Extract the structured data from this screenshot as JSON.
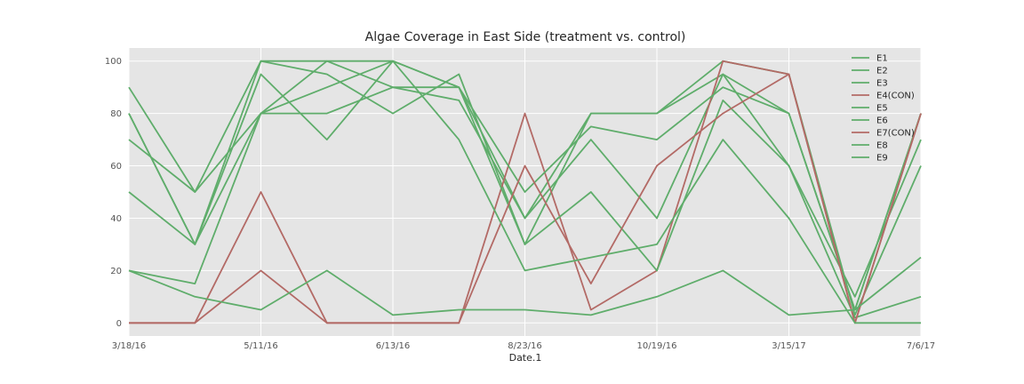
{
  "chart_data": {
    "type": "line",
    "title": "Algae Coverage in East Side (treatment vs. control)",
    "xlabel": "Date.1",
    "ylabel": "",
    "x": [
      "3/18/16",
      "",
      "5/11/16",
      "",
      "6/13/16",
      "",
      "8/23/16",
      "",
      "10/19/16",
      "",
      "3/15/17",
      "",
      "7/6/17"
    ],
    "x_tick_labels": [
      "3/18/16",
      "5/11/16",
      "6/13/16",
      "8/23/16",
      "10/19/16",
      "3/15/17",
      "7/6/17"
    ],
    "ylim": [
      -5,
      105
    ],
    "y_ticks": [
      0,
      20,
      40,
      60,
      80,
      100
    ],
    "grid": true,
    "legend_position": "top-right",
    "colors": {
      "treatment": "#5fad6b",
      "control": "#b36a66",
      "background": "#e5e5e5",
      "grid": "#ffffff"
    },
    "series": [
      {
        "name": "E1",
        "color": "#5fad6b",
        "values": [
          80,
          30,
          80,
          80,
          90,
          90,
          40,
          80,
          80,
          95,
          80,
          5,
          80
        ]
      },
      {
        "name": "E2",
        "color": "#5fad6b",
        "values": [
          90,
          50,
          100,
          95,
          80,
          95,
          30,
          80,
          80,
          100,
          95,
          3,
          60
        ]
      },
      {
        "name": "E3",
        "color": "#5fad6b",
        "values": [
          70,
          50,
          80,
          100,
          90,
          85,
          40,
          70,
          40,
          95,
          60,
          10,
          70
        ]
      },
      {
        "name": "E4(CON)",
        "color": "#b36a66",
        "values": [
          0,
          0,
          50,
          0,
          0,
          0,
          80,
          5,
          20,
          100,
          95,
          0,
          80
        ]
      },
      {
        "name": "E5",
        "color": "#5fad6b",
        "values": [
          80,
          30,
          100,
          100,
          100,
          90,
          50,
          75,
          70,
          90,
          80,
          5,
          80
        ]
      },
      {
        "name": "E6",
        "color": "#5fad6b",
        "values": [
          50,
          30,
          95,
          70,
          100,
          90,
          30,
          50,
          20,
          85,
          60,
          2,
          10
        ]
      },
      {
        "name": "E7(CON)",
        "color": "#b36a66",
        "values": [
          0,
          0,
          20,
          0,
          0,
          0,
          60,
          15,
          60,
          80,
          95,
          0,
          80
        ]
      },
      {
        "name": "E8",
        "color": "#5fad6b",
        "values": [
          20,
          15,
          80,
          90,
          100,
          70,
          20,
          25,
          30,
          70,
          40,
          0,
          0
        ]
      },
      {
        "name": "E9",
        "color": "#5fad6b",
        "values": [
          20,
          10,
          5,
          20,
          3,
          5,
          5,
          3,
          10,
          20,
          3,
          5,
          25
        ]
      }
    ]
  }
}
